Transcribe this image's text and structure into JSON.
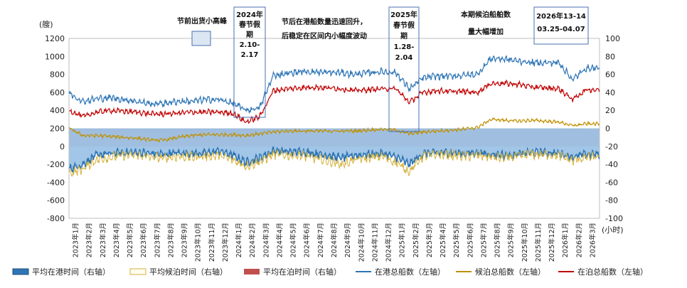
{
  "chart_data": {
    "type": "line",
    "left_axis": {
      "unit": "(艘)",
      "range": [
        -800,
        1200
      ],
      "ticks": [
        -800,
        -600,
        -400,
        -200,
        0,
        200,
        400,
        600,
        800,
        1000,
        1200
      ]
    },
    "right_axis": {
      "unit": "(小时)",
      "range": [
        -100,
        100
      ],
      "ticks": [
        -100,
        -80,
        -60,
        -40,
        -20,
        0,
        20,
        40,
        60,
        80,
        100
      ]
    },
    "x_labels": [
      "2023年1月",
      "2023年2月",
      "2023年3月",
      "2023年4月",
      "2023年5月",
      "2023年6月",
      "2023年7月",
      "2023年8月",
      "2023年9月",
      "2023年10月",
      "2023年11月",
      "2023年12月",
      "2024年1月",
      "2024年2月",
      "2024年3月",
      "2024年4月",
      "2024年5月",
      "2024年6月",
      "2024年7月",
      "2024年8月",
      "2024年9月",
      "2024年10月",
      "2024年11月",
      "2024年12月",
      "2025年1月",
      "2025年2月",
      "2025年3月",
      "2025年4月",
      "2025年5月",
      "2025年6月",
      "2025年7月",
      "2025年8月",
      "2025年9月",
      "2025年10月",
      "2025年11月",
      "2025年12月",
      "2026年1月",
      "2026年2月",
      "2026年3月"
    ],
    "series": [
      {
        "name": "平均在港时间（右轴）",
        "axis": "right",
        "style": "area",
        "color": "#2e75b6",
        "monthly": [
          -45,
          -40,
          -30,
          -28,
          -27,
          -27,
          -28,
          -29,
          -27,
          -28,
          -28,
          -25,
          -30,
          -38,
          -33,
          -25,
          -26,
          -26,
          -28,
          -30,
          -33,
          -30,
          -29,
          -28,
          -32,
          -40,
          -28,
          -27,
          -27,
          -28,
          -27,
          -29,
          -30,
          -29,
          -27,
          -27,
          -28,
          -32,
          -29
        ]
      },
      {
        "name": "平均候泊时间（右轴）",
        "axis": "right",
        "style": "line",
        "color": "#d4b13a",
        "monthly": [
          -50,
          -45,
          -35,
          -32,
          -30,
          -30,
          -32,
          -33,
          -31,
          -32,
          -31,
          -30,
          -35,
          -42,
          -37,
          -29,
          -30,
          -30,
          -33,
          -36,
          -40,
          -35,
          -33,
          -31,
          -38,
          -48,
          -31,
          -29,
          -30,
          -31,
          -30,
          -32,
          -33,
          -31,
          -29,
          -29,
          -30,
          -36,
          -32
        ]
      },
      {
        "name": "平均在泊时间（右轴）",
        "axis": "right",
        "style": "area",
        "color": "#c0504d",
        "monthly": [
          0,
          -2,
          -3,
          -4,
          -4,
          -4,
          -5,
          -5,
          -5,
          -4,
          -4,
          -4,
          -6,
          -8,
          -6,
          -3,
          -2,
          -2,
          -2,
          -2,
          -2,
          -2,
          -2,
          -2,
          -3,
          -6,
          -3,
          -2,
          -2,
          -2,
          -2,
          -2,
          -2,
          -2,
          -2,
          -2,
          -2,
          -3,
          -2
        ]
      },
      {
        "name": "在港总船数（左轴）",
        "axis": "left",
        "style": "line",
        "color": "#2e75b6",
        "monthly": [
          590,
          500,
          530,
          540,
          520,
          500,
          470,
          480,
          500,
          500,
          520,
          520,
          480,
          400,
          430,
          790,
          810,
          830,
          830,
          820,
          820,
          800,
          820,
          830,
          820,
          640,
          760,
          780,
          780,
          790,
          800,
          980,
          970,
          950,
          930,
          930,
          930,
          740,
          870
        ]
      },
      {
        "name": "候泊总船数（左轴）",
        "axis": "left",
        "style": "line",
        "color": "#c09000",
        "monthly": [
          200,
          120,
          120,
          110,
          100,
          90,
          70,
          70,
          100,
          120,
          130,
          130,
          130,
          120,
          140,
          160,
          170,
          170,
          170,
          170,
          170,
          170,
          180,
          190,
          180,
          140,
          160,
          170,
          180,
          190,
          210,
          300,
          290,
          280,
          290,
          280,
          270,
          230,
          250
        ]
      },
      {
        "name": "在泊总船数（左轴）",
        "axis": "left",
        "style": "line",
        "color": "#c00000",
        "monthly": [
          400,
          330,
          380,
          400,
          390,
          380,
          360,
          360,
          370,
          380,
          380,
          380,
          370,
          270,
          330,
          620,
          640,
          650,
          660,
          650,
          640,
          620,
          630,
          640,
          640,
          490,
          600,
          620,
          610,
          610,
          600,
          700,
          700,
          690,
          660,
          650,
          640,
          520,
          630
        ]
      }
    ],
    "annotations": [
      {
        "id": "a1",
        "lines": [
          "节前出货小高峰"
        ]
      },
      {
        "id": "a2",
        "lines": [
          "2024年",
          "春节假",
          "期",
          "2.10-",
          "2.17"
        ]
      },
      {
        "id": "a3",
        "lines": [
          "节后在港船数量迅速回升，",
          "后稳定在区间内小幅度波动"
        ]
      },
      {
        "id": "a4",
        "lines": [
          "2025年",
          "春节假",
          "期",
          "1.28-",
          "2.04"
        ]
      },
      {
        "id": "a5",
        "lines": [
          "本期候泊船舶数",
          "量大幅增加"
        ]
      },
      {
        "id": "a6",
        "lines": [
          "2026年13-14",
          "03.25-04.07"
        ]
      }
    ],
    "legend_position": "bottom"
  }
}
